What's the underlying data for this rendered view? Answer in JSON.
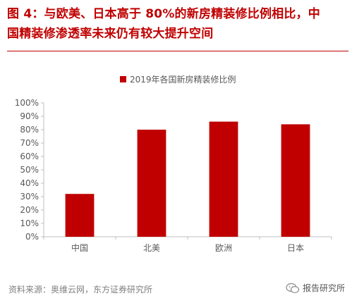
{
  "figure": {
    "title_line1": "图 4：与欧美、日本高于 80%的新房精装修比例相比，中",
    "title_line2": "国精装修渗透率未来仍有较大提升空间",
    "source": "资料来源：奥维云网，东方证券研究所",
    "watermark": "报告研究所"
  },
  "colors": {
    "accent": "#c00000",
    "bar": "#c00000",
    "axis": "#bfbfbf",
    "text": "#595959"
  },
  "chart_data": {
    "type": "bar",
    "categories": [
      "中国",
      "北美",
      "欧洲",
      "日本"
    ],
    "series": [
      {
        "name": "2019年各国新房精装修比例",
        "values": [
          32,
          80,
          86,
          84
        ]
      }
    ],
    "title": "",
    "xlabel": "",
    "ylabel": "",
    "ylim": [
      0,
      100
    ],
    "yticks": [
      "0%",
      "10%",
      "20%",
      "30%",
      "40%",
      "50%",
      "60%",
      "70%",
      "80%",
      "90%",
      "100%"
    ],
    "grid": false,
    "legend": "top-center"
  }
}
